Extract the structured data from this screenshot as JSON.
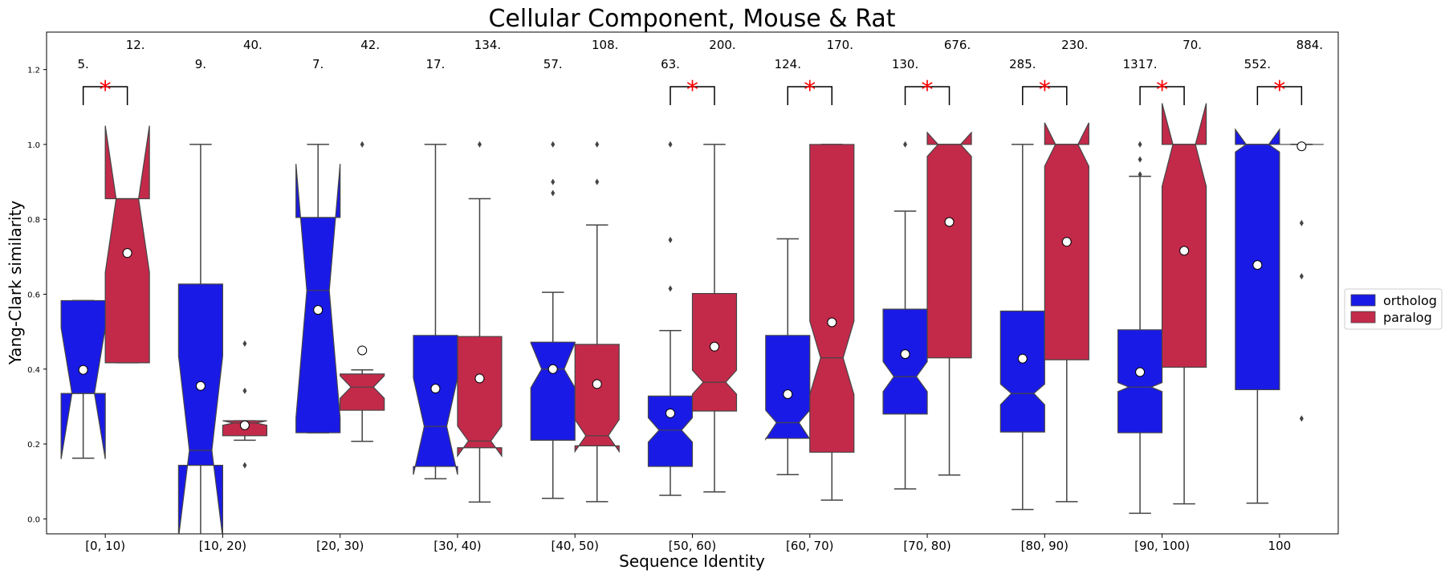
{
  "chart_data": {
    "type": "box",
    "title": "Cellular Component, Mouse & Rat",
    "xlabel": "Sequence Identity",
    "ylabel": "Yang-Clark similarity",
    "ylim": [
      -0.04,
      1.3
    ],
    "yticks": [
      "0.0",
      "0.2",
      "0.4",
      "0.6",
      "0.8",
      "1.0",
      "1.2"
    ],
    "categories": [
      "[0, 10)",
      "[10, 20)",
      "[20, 30)",
      "[30, 40)",
      "[40, 50)",
      "[50, 60)",
      "[60, 70)",
      "[70, 80)",
      "[80, 90)",
      "[90, 100)",
      "100"
    ],
    "legend_position": "right",
    "series": [
      {
        "name": "ortholog",
        "color": "#1a1ae6",
        "boxes": [
          {
            "q1": 0.335,
            "median": 0.335,
            "q3": 0.583,
            "whislo": 0.162,
            "whishi": 0.583,
            "notchlo": 0.16,
            "notchhi": 0.51,
            "mean": 0.398,
            "fliers": []
          },
          {
            "q1": 0.143,
            "median": 0.183,
            "q3": 0.627,
            "whislo": -0.05,
            "whishi": 1.0,
            "notchlo": -0.05,
            "notchhi": 0.435,
            "mean": 0.355,
            "fliers": []
          },
          {
            "q1": 0.23,
            "median": 0.61,
            "q3": 0.805,
            "whislo": 0.23,
            "whishi": 1.0,
            "notchlo": 0.27,
            "notchhi": 0.948,
            "mean": 0.558,
            "fliers": []
          },
          {
            "q1": 0.14,
            "median": 0.247,
            "q3": 0.49,
            "whislo": 0.107,
            "whishi": 1.0,
            "notchlo": 0.118,
            "notchhi": 0.376,
            "mean": 0.348,
            "fliers": []
          },
          {
            "q1": 0.21,
            "median": 0.4,
            "q3": 0.472,
            "whislo": 0.055,
            "whishi": 0.605,
            "notchlo": 0.35,
            "notchhi": 0.47,
            "mean": 0.4,
            "fliers": [
              0.87,
              0.9,
              1.0
            ]
          },
          {
            "q1": 0.14,
            "median": 0.237,
            "q3": 0.328,
            "whislo": 0.063,
            "whishi": 0.503,
            "notchlo": 0.205,
            "notchhi": 0.27,
            "mean": 0.282,
            "fliers": [
              0.615,
              0.745,
              1.0
            ]
          },
          {
            "q1": 0.215,
            "median": 0.257,
            "q3": 0.49,
            "whislo": 0.118,
            "whishi": 0.748,
            "notchlo": 0.213,
            "notchhi": 0.29,
            "mean": 0.333,
            "fliers": []
          },
          {
            "q1": 0.28,
            "median": 0.38,
            "q3": 0.56,
            "whislo": 0.08,
            "whishi": 0.822,
            "notchlo": 0.34,
            "notchhi": 0.42,
            "mean": 0.44,
            "fliers": [
              1.0
            ]
          },
          {
            "q1": 0.232,
            "median": 0.335,
            "q3": 0.555,
            "whislo": 0.025,
            "whishi": 1.0,
            "notchlo": 0.305,
            "notchhi": 0.36,
            "mean": 0.428,
            "fliers": []
          },
          {
            "q1": 0.23,
            "median": 0.352,
            "q3": 0.505,
            "whislo": 0.015,
            "whishi": 0.915,
            "notchlo": 0.34,
            "notchhi": 0.364,
            "mean": 0.392,
            "fliers": [
              0.92,
              0.96,
              1.0
            ]
          },
          {
            "q1": 0.345,
            "median": 1.0,
            "q3": 1.0,
            "whislo": 0.042,
            "whishi": 1.0,
            "notchlo": 0.98,
            "notchhi": 1.04,
            "mean": 0.678,
            "fliers": []
          }
        ]
      },
      {
        "name": "paralog",
        "color": "#c32a4a",
        "boxes": [
          {
            "q1": 0.417,
            "median": 0.855,
            "q3": 0.855,
            "whislo": 0.417,
            "whishi": 0.855,
            "notchlo": 0.658,
            "notchhi": 1.05,
            "mean": 0.71,
            "fliers": []
          },
          {
            "q1": 0.222,
            "median": 0.256,
            "q3": 0.262,
            "whislo": 0.21,
            "whishi": 0.262,
            "notchlo": 0.25,
            "notchhi": 0.262,
            "mean": 0.25,
            "fliers": [
              0.143,
              0.342,
              0.468
            ]
          },
          {
            "q1": 0.29,
            "median": 0.352,
            "q3": 0.387,
            "whislo": 0.207,
            "whishi": 0.398,
            "notchlo": 0.322,
            "notchhi": 0.382,
            "mean": 0.45,
            "fliers": [
              1.0
            ]
          },
          {
            "q1": 0.19,
            "median": 0.208,
            "q3": 0.487,
            "whislo": 0.045,
            "whishi": 0.855,
            "notchlo": 0.168,
            "notchhi": 0.248,
            "mean": 0.375,
            "fliers": [
              1.0
            ]
          },
          {
            "q1": 0.195,
            "median": 0.222,
            "q3": 0.466,
            "whislo": 0.046,
            "whishi": 0.785,
            "notchlo": 0.18,
            "notchhi": 0.265,
            "mean": 0.36,
            "fliers": [
              0.9,
              1.0
            ]
          },
          {
            "q1": 0.288,
            "median": 0.365,
            "q3": 0.602,
            "whislo": 0.072,
            "whishi": 1.0,
            "notchlo": 0.333,
            "notchhi": 0.397,
            "mean": 0.46,
            "fliers": []
          },
          {
            "q1": 0.178,
            "median": 0.43,
            "q3": 1.0,
            "whislo": 0.05,
            "whishi": 1.0,
            "notchlo": 0.332,
            "notchhi": 0.528,
            "mean": 0.525,
            "fliers": []
          },
          {
            "q1": 0.43,
            "median": 1.0,
            "q3": 1.0,
            "whislo": 0.117,
            "whishi": 1.0,
            "notchlo": 0.968,
            "notchhi": 1.032,
            "mean": 0.793,
            "fliers": []
          },
          {
            "q1": 0.425,
            "median": 1.0,
            "q3": 1.0,
            "whislo": 0.046,
            "whishi": 1.0,
            "notchlo": 0.942,
            "notchhi": 1.058,
            "mean": 0.74,
            "fliers": []
          },
          {
            "q1": 0.405,
            "median": 1.0,
            "q3": 1.0,
            "whislo": 0.04,
            "whishi": 1.0,
            "notchlo": 0.888,
            "notchhi": 1.11,
            "mean": 0.716,
            "fliers": []
          },
          {
            "q1": 1.0,
            "median": 1.0,
            "q3": 1.0,
            "whislo": 1.0,
            "whishi": 1.0,
            "notchlo": 1.0,
            "notchhi": 1.0,
            "mean": 0.995,
            "fliers": [
              0.268,
              0.648,
              0.79
            ]
          }
        ]
      }
    ],
    "counts": [
      {
        "ortholog": "5.",
        "paralog": "12."
      },
      {
        "ortholog": "9.",
        "paralog": "40."
      },
      {
        "ortholog": "7.",
        "paralog": "42."
      },
      {
        "ortholog": "17.",
        "paralog": "134."
      },
      {
        "ortholog": "57.",
        "paralog": "108."
      },
      {
        "ortholog": "63.",
        "paralog": "200."
      },
      {
        "ortholog": "124.",
        "paralog": "170."
      },
      {
        "ortholog": "130.",
        "paralog": "676."
      },
      {
        "ortholog": "285.",
        "paralog": "230."
      },
      {
        "ortholog": "1317.",
        "paralog": "70."
      },
      {
        "ortholog": "552.",
        "paralog": "884."
      }
    ],
    "significance": [
      {
        "category": 0,
        "label": "*"
      },
      {
        "category": 5,
        "label": "*"
      },
      {
        "category": 6,
        "label": "*"
      },
      {
        "category": 7,
        "label": "*"
      },
      {
        "category": 8,
        "label": "*"
      },
      {
        "category": 9,
        "label": "*"
      },
      {
        "category": 10,
        "label": "*"
      }
    ]
  }
}
